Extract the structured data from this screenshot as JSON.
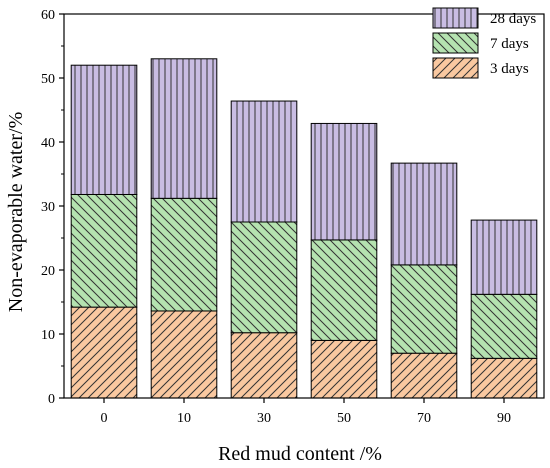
{
  "chart_data": {
    "type": "bar",
    "stacked": true,
    "categories": [
      "0",
      "10",
      "30",
      "50",
      "70",
      "90"
    ],
    "series": [
      {
        "name": "3 days",
        "values": [
          14.2,
          13.6,
          10.2,
          9.0,
          7.0,
          6.2
        ],
        "color": "#f9c8a0",
        "pattern": "diagonal-forward"
      },
      {
        "name": "7 days",
        "values": [
          17.6,
          17.6,
          17.3,
          15.7,
          13.8,
          10.0
        ],
        "color": "#b5e2b0",
        "pattern": "diagonal-back"
      },
      {
        "name": "28 days",
        "values": [
          20.2,
          21.8,
          18.9,
          18.2,
          15.9,
          11.6
        ],
        "color": "#c9bde3",
        "pattern": "vertical"
      }
    ],
    "xlabel": "Red mud content /%",
    "ylabel": "Non-evaporable water/%",
    "ylim": [
      0,
      60
    ],
    "yticks": [
      "0",
      "10",
      "20",
      "30",
      "40",
      "50",
      "60"
    ],
    "grid": false,
    "legend_position": "top-right",
    "legend_order": [
      "28 days",
      "7 days",
      "3 days"
    ]
  }
}
